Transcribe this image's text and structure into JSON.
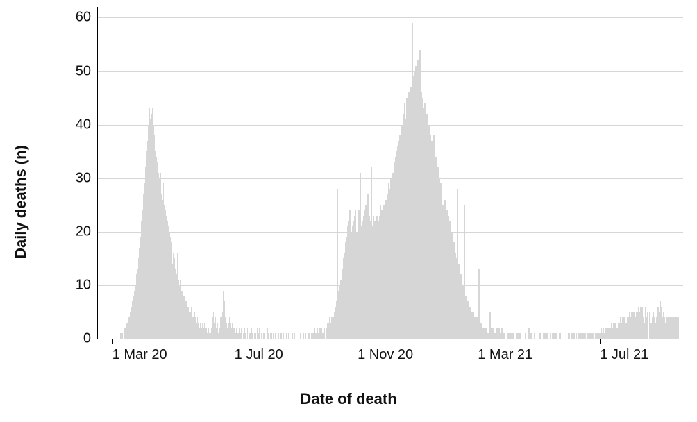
{
  "chart": {
    "type": "bar",
    "y_axis_title": "Daily deaths (n)",
    "x_axis_title": "Date of death",
    "bar_color": "#d6d6d6",
    "grid_color": "#d6d6d6",
    "background_color": "#ffffff",
    "axis_color": "#000000",
    "label_color": "#111111",
    "label_fontsize": 20,
    "title_fontsize": 22,
    "ylim": [
      0,
      62
    ],
    "yticks": [
      0,
      10,
      20,
      30,
      40,
      50,
      60
    ],
    "x_start_index": 0,
    "x_end_index": 585,
    "x_ticks": [
      {
        "label": "1 Mar 20",
        "index": 15
      },
      {
        "label": "1 Jul 20",
        "index": 137
      },
      {
        "label": "1 Nov 20",
        "index": 260
      },
      {
        "label": "1 Mar 21",
        "index": 380
      },
      {
        "label": "1 Jul 21",
        "index": 502
      }
    ],
    "values": [
      0,
      0,
      0,
      0,
      0,
      0,
      0,
      0,
      0,
      0,
      0,
      0,
      0,
      0,
      0,
      0,
      0,
      0,
      0,
      0,
      0,
      0,
      1,
      1,
      1,
      0,
      2,
      2,
      3,
      3,
      4,
      4,
      5,
      6,
      7,
      8,
      9,
      10,
      12,
      13,
      15,
      17,
      19,
      22,
      24,
      27,
      29,
      32,
      35,
      37,
      40,
      43,
      41,
      42,
      43,
      40,
      38,
      35,
      34,
      33,
      31,
      30,
      31,
      27,
      26,
      29,
      25,
      24,
      23,
      22,
      21,
      20,
      19,
      18,
      14,
      16,
      15,
      13,
      12,
      16,
      11,
      10,
      11,
      9,
      9,
      8,
      8,
      7,
      7,
      6,
      6,
      5,
      5,
      6,
      4,
      4,
      5,
      4,
      3,
      4,
      3,
      2,
      3,
      2,
      3,
      2,
      3,
      2,
      2,
      1,
      2,
      1,
      1,
      2,
      4,
      5,
      3,
      4,
      2,
      3,
      1,
      2,
      4,
      4,
      5,
      9,
      7,
      4,
      3,
      2,
      3,
      4,
      3,
      2,
      3,
      2,
      2,
      1,
      2,
      1,
      1,
      2,
      1,
      2,
      0,
      1,
      2,
      1,
      0,
      2,
      0,
      1,
      1,
      2,
      1,
      0,
      1,
      1,
      0,
      2,
      1,
      2,
      0,
      1,
      0,
      1,
      1,
      0,
      0,
      2,
      1,
      0,
      1,
      1,
      0,
      1,
      0,
      1,
      0,
      0,
      1,
      0,
      1,
      1,
      0,
      1,
      0,
      0,
      1,
      0,
      1,
      0,
      0,
      0,
      1,
      0,
      1,
      0,
      0,
      0,
      1,
      0,
      1,
      0,
      0,
      1,
      0,
      1,
      0,
      1,
      1,
      1,
      0,
      1,
      1,
      1,
      2,
      1,
      1,
      2,
      1,
      2,
      2,
      2,
      1,
      2,
      2,
      3,
      2,
      3,
      3,
      4,
      3,
      4,
      5,
      4,
      5,
      6,
      7,
      28,
      9,
      10,
      11,
      12,
      13,
      15,
      16,
      18,
      19,
      21,
      22,
      24,
      23,
      20,
      21,
      22,
      23,
      24,
      20,
      25,
      24,
      23,
      31,
      21,
      22,
      23,
      24,
      25,
      26,
      27,
      28,
      23,
      22,
      32,
      21,
      23,
      22,
      24,
      23,
      24,
      22,
      23,
      25,
      24,
      26,
      25,
      27,
      26,
      28,
      27,
      29,
      28,
      30,
      29,
      31,
      32,
      33,
      34,
      35,
      36,
      37,
      38,
      48,
      40,
      41,
      42,
      44,
      41,
      45,
      43,
      46,
      51,
      47,
      48,
      59,
      49,
      50,
      51,
      53,
      52,
      51,
      54,
      47,
      46,
      45,
      43,
      44,
      43,
      42,
      41,
      40,
      39,
      38,
      37,
      36,
      38,
      35,
      34,
      33,
      32,
      31,
      30,
      29,
      28,
      25,
      27,
      26,
      25,
      24,
      43,
      23,
      22,
      21,
      20,
      19,
      18,
      17,
      16,
      15,
      28,
      14,
      13,
      12,
      11,
      10,
      9,
      25,
      8,
      8,
      7,
      7,
      6,
      6,
      5,
      5,
      5,
      4,
      4,
      4,
      3,
      13,
      3,
      3,
      3,
      2,
      2,
      2,
      2,
      4,
      1,
      2,
      5,
      2,
      1,
      2,
      2,
      1,
      1,
      2,
      1,
      2,
      1,
      1,
      2,
      1,
      1,
      1,
      0,
      2,
      1,
      1,
      1,
      1,
      0,
      1,
      1,
      0,
      1,
      1,
      1,
      0,
      1,
      1,
      0,
      1,
      0,
      1,
      1,
      0,
      1,
      2,
      0,
      1,
      1,
      0,
      1,
      1,
      0,
      1,
      0,
      1,
      1,
      0,
      0,
      1,
      0,
      1,
      0,
      1,
      1,
      0,
      1,
      0,
      1,
      0,
      1,
      0,
      1,
      0,
      0,
      1,
      1,
      0,
      1,
      0,
      1,
      0,
      1,
      0,
      1,
      1,
      0,
      0,
      1,
      0,
      1,
      0,
      1,
      0,
      1,
      1,
      0,
      1,
      0,
      1,
      1,
      1,
      0,
      1,
      1,
      0,
      1,
      1,
      1,
      1,
      0,
      1,
      1,
      1,
      2,
      1,
      1,
      2,
      1,
      2,
      1,
      2,
      2,
      1,
      2,
      2,
      2,
      3,
      2,
      3,
      2,
      3,
      3,
      2,
      3,
      3,
      4,
      3,
      4,
      3,
      4,
      4,
      3,
      4,
      4,
      5,
      4,
      5,
      4,
      5,
      5,
      4,
      5,
      5,
      6,
      5,
      6,
      5,
      6,
      4,
      3,
      6,
      4,
      5,
      4,
      5,
      4,
      3,
      4,
      5,
      4,
      3,
      4,
      5,
      6,
      5,
      7,
      6,
      4,
      5,
      4,
      3,
      4,
      4,
      4,
      4,
      4,
      4,
      4,
      4,
      4,
      4,
      4,
      4,
      4
    ]
  }
}
